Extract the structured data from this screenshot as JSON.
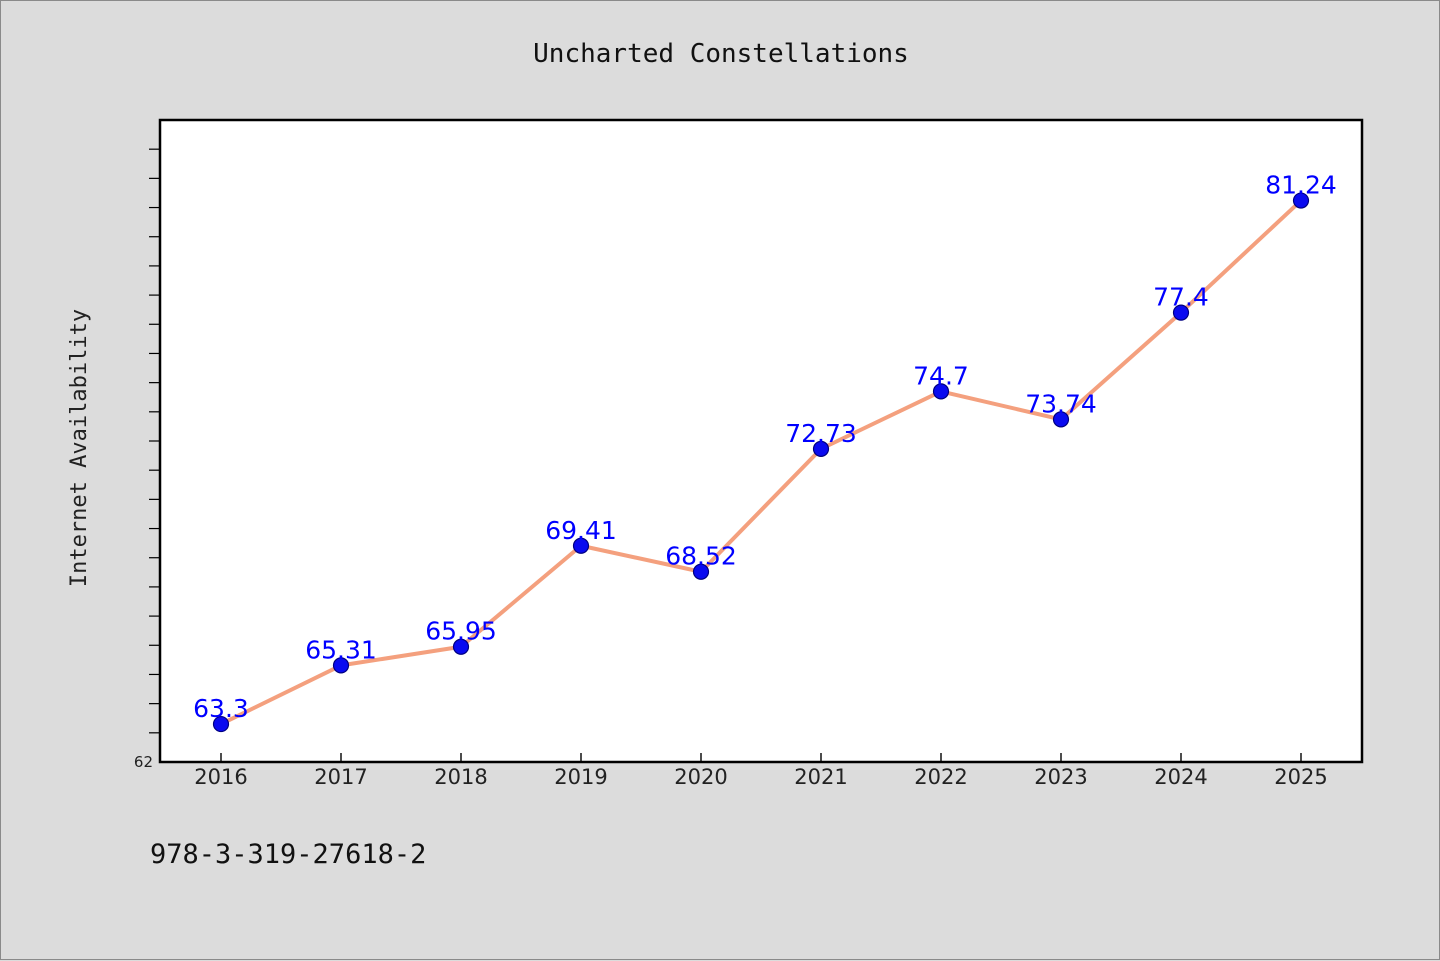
{
  "chart_data": {
    "type": "line",
    "title": "Uncharted Constellations",
    "xlabel": "",
    "ylabel": "Internet Availability",
    "x": [
      2016,
      2017,
      2018,
      2019,
      2020,
      2021,
      2022,
      2023,
      2024,
      2025
    ],
    "x_tick_labels": [
      "2016",
      "2017",
      "2018",
      "2019",
      "2020",
      "2021",
      "2022",
      "2023",
      "2024",
      "2025"
    ],
    "series": [
      {
        "values": [
          63.3,
          65.31,
          65.95,
          69.41,
          68.52,
          72.73,
          74.7,
          73.74,
          77.4,
          81.24
        ],
        "labels": [
          "63.3",
          "65.31",
          "65.95",
          "69.41",
          "68.52",
          "72.73",
          "74.7",
          "73.74",
          "77.4",
          "81.24"
        ]
      }
    ],
    "y_tick_labels": [
      "62"
    ],
    "ylim": [
      62,
      84
    ],
    "y_minor_tick_step": 1,
    "grid": false,
    "legend": "none",
    "line_color": "#f4a07e",
    "marker_color": "#0a0af0",
    "marker_edge_color": "#000080",
    "data_label_color": "#0000ff",
    "background_color": "#dcdcdc",
    "plot_background": "#ffffff"
  },
  "footer": {
    "isbn": "978-3-319-27618-2"
  }
}
